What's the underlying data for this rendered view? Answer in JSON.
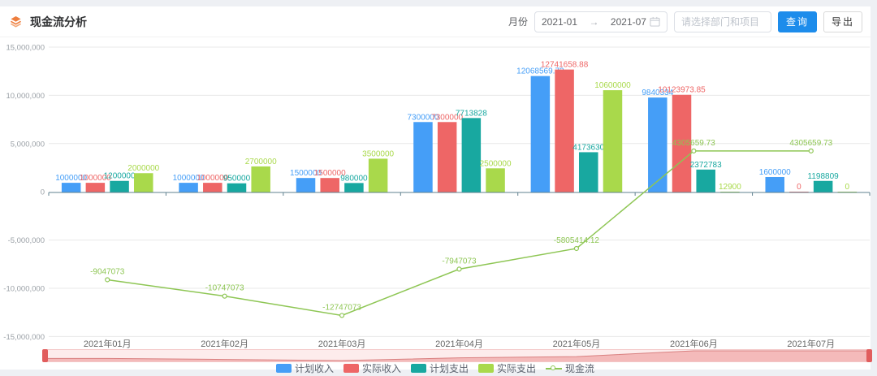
{
  "header": {
    "title": "现金流分析"
  },
  "filters": {
    "month_label": "月份",
    "date_start": "2021-01",
    "date_separator": "→",
    "date_end": "2021-07",
    "project_placeholder": "请选择部门和项目",
    "query_label": "查询",
    "export_label": "导出"
  },
  "icons": {
    "app_logo": "layers-icon",
    "calendar": "calendar-icon",
    "legend_line": "line-with-circle-icon"
  },
  "colors": {
    "primary_button": "#1d8ceb",
    "plan_income": "#459ef7",
    "actual_income": "#ee6666",
    "plan_expense": "#18a8a0",
    "actual_expense": "#a9d94b",
    "cashflow_line": "#8ec654",
    "axis_line": "#5f808f",
    "gridline": "#e8e8e8",
    "datazoom_fill": "#eb8787",
    "datazoom_handle": "#e15d5d"
  },
  "chart_data": {
    "type": "bar",
    "title": "现金流分析",
    "categories": [
      "2021年01月",
      "2021年02月",
      "2021年03月",
      "2021年04月",
      "2021年05月",
      "2021年06月",
      "2021年07月"
    ],
    "series": [
      {
        "name": "计划收入",
        "type": "bar",
        "color": "#459ef7",
        "values": [
          1000000,
          1000000,
          1500000,
          7300000,
          12068569.73,
          9840334,
          1600000
        ],
        "labels": [
          "1000000",
          "1000000",
          "1500000",
          "7300000",
          "12068569.73",
          "9840334",
          "1600000"
        ]
      },
      {
        "name": "实际收入",
        "type": "bar",
        "color": "#ee6666",
        "values": [
          1000000,
          1000000,
          1500000,
          7300000,
          12741658.88,
          10123973.85,
          0
        ],
        "labels": [
          "1000000",
          "1000000",
          "1500000",
          "7300000",
          "12741658.88",
          "10123973.85",
          "0"
        ]
      },
      {
        "name": "计划支出",
        "type": "bar",
        "color": "#18a8a0",
        "values": [
          1200000,
          950000,
          980000,
          7713828,
          4173630,
          2372783,
          1198809
        ],
        "labels": [
          "1200000",
          "950000",
          "980000",
          "7713828",
          "4173630",
          "2372783",
          "1198809"
        ]
      },
      {
        "name": "实际支出",
        "type": "bar",
        "color": "#a9d94b",
        "values": [
          2000000,
          2700000,
          3500000,
          2500000,
          10600000,
          12900,
          0
        ],
        "labels": [
          "2000000",
          "2700000",
          "3500000",
          "2500000",
          "10600000",
          "12900",
          "0"
        ]
      },
      {
        "name": "现金流",
        "type": "line",
        "color": "#8ec654",
        "values": [
          -9047073,
          -10747073,
          -12747073,
          -7947073,
          -5805414.12,
          4305659.73,
          4305659.73
        ],
        "labels": [
          "-9047073",
          "-10747073",
          "-12747073",
          "-7947073",
          "-5805414.12",
          "4305659.73",
          "4305659.73"
        ]
      }
    ],
    "y_axis_ticks": [
      "15,000,000",
      "10,000,000",
      "5,000,000",
      "0",
      "-5,000,000",
      "-10,000,000",
      "-15,000,000"
    ],
    "ylim": [
      -15000000,
      15000000
    ],
    "grid": true,
    "legend_position": "bottom",
    "xlabel": "",
    "ylabel": ""
  }
}
